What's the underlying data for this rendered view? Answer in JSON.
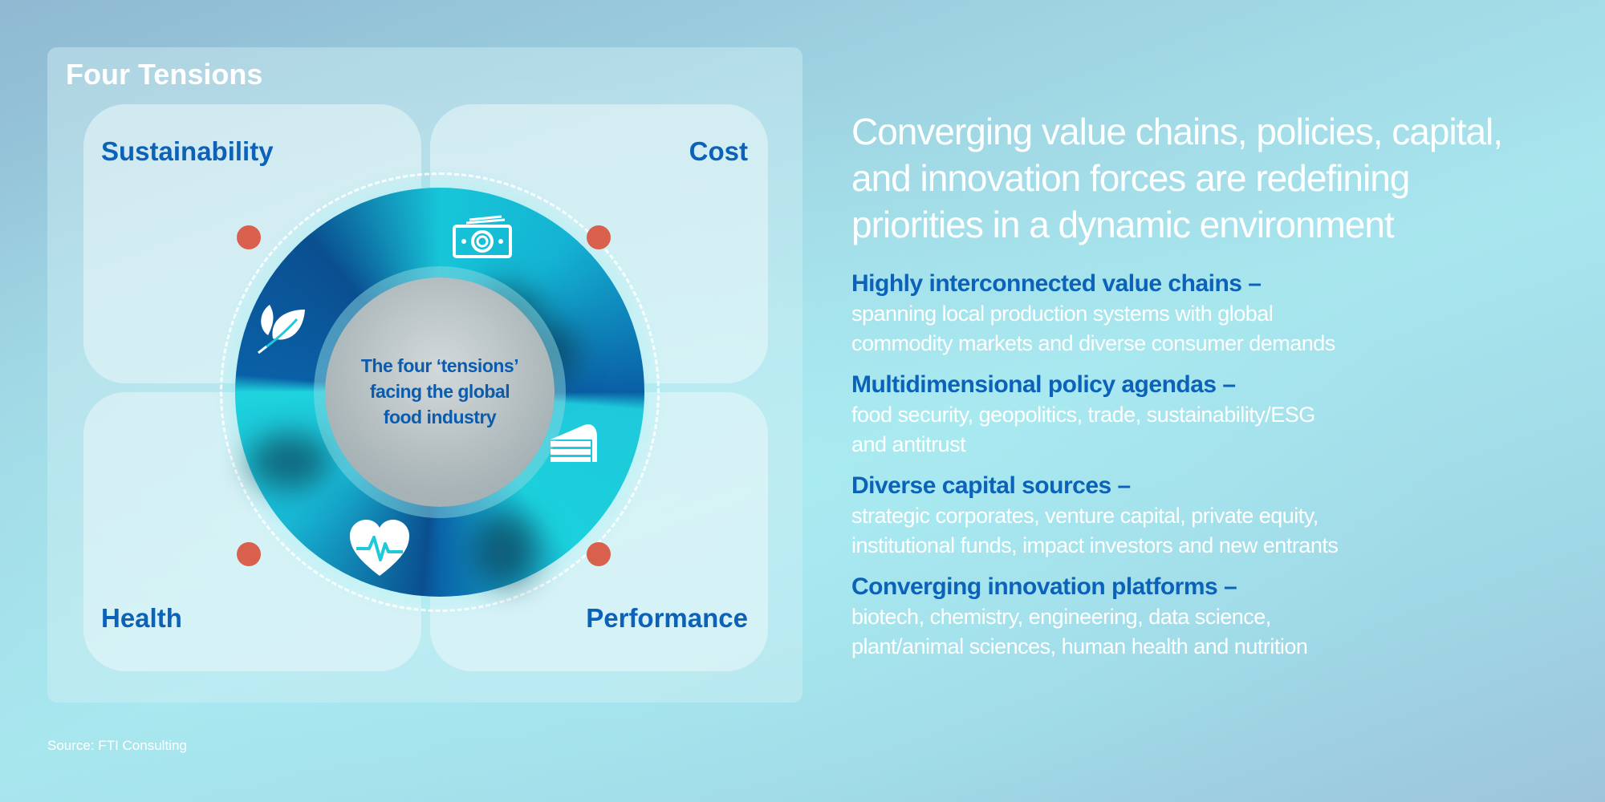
{
  "panel": {
    "title": "Four Tensions",
    "quadrants": [
      "Sustainability",
      "Cost",
      "Health",
      "Performance"
    ],
    "center_text": [
      "The four ‘tensions’",
      "facing the global",
      "food industry"
    ],
    "icons": [
      "leaf-icon",
      "money-icon",
      "cake-icon",
      "heart-pulse-icon"
    ]
  },
  "right": {
    "headline": [
      "Converging value chains, policies, capital,",
      "and innovation forces are redefining",
      "priorities in a dynamic environment"
    ],
    "items": [
      {
        "title": "Highly interconnected value chains –",
        "body": "spanning local production systems with global\ncommodity markets and diverse consumer demands"
      },
      {
        "title": "Multidimensional policy agendas –",
        "body": "food security, geopolitics, trade, sustainability/ESG\nand antitrust"
      },
      {
        "title": "Diverse capital sources –",
        "body": "strategic corporates, venture capital, private equity,\ninstitutional funds, impact investors and new entrants"
      },
      {
        "title": "Converging innovation platforms  –",
        "body": "biotech, chemistry, engineering, data science,\nplant/animal sciences, human health and nutrition"
      }
    ]
  },
  "source": "Source: FTI Consulting",
  "colors": {
    "accent_blue": "#0b62b8",
    "dot_red": "#d9604c",
    "ring_dark": "#0a5fa5",
    "ring_cyan": "#1bd0dc"
  }
}
